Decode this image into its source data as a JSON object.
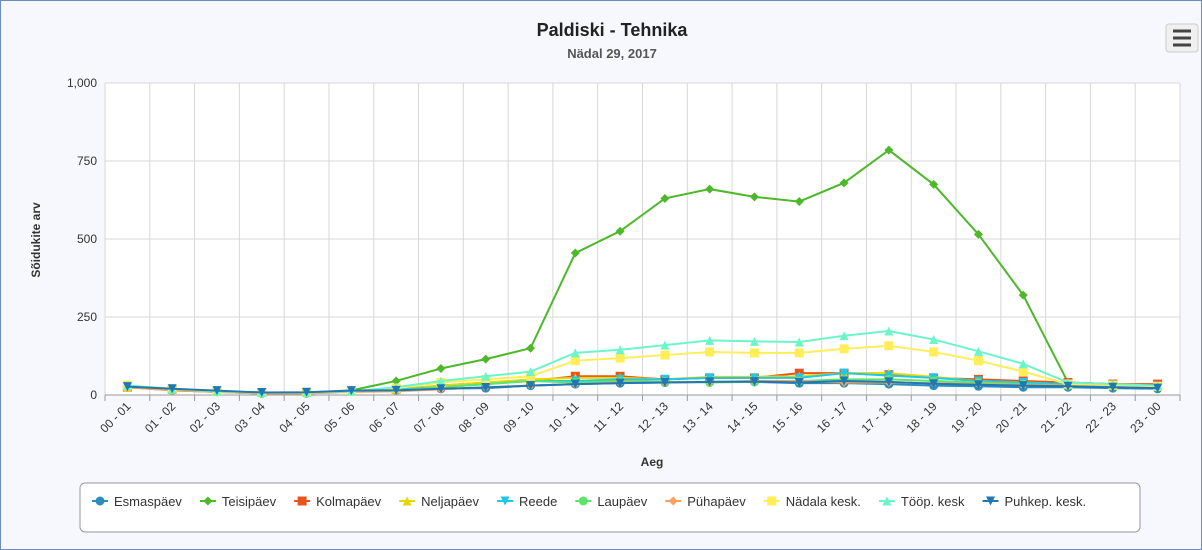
{
  "chart_data": {
    "type": "line",
    "title": "Paldiski - Tehnika",
    "subtitle": "Nädal 29, 2017",
    "x_label": "Aeg",
    "y_label": "Sõidukite arv",
    "categories": [
      "00 - 01",
      "01 - 02",
      "02 - 03",
      "03 - 04",
      "04 - 05",
      "05 - 06",
      "06 - 07",
      "07 - 08",
      "08 - 09",
      "09 - 10",
      "10 - 11",
      "11 - 12",
      "12 - 13",
      "13 - 14",
      "14 - 15",
      "15 - 16",
      "16 - 17",
      "17 - 18",
      "18 - 19",
      "19 - 20",
      "20 - 21",
      "21 - 22",
      "22 - 23",
      "23 - 00"
    ],
    "ylim": [
      0,
      1000
    ],
    "yticks": [
      0,
      250,
      500,
      750,
      {
        "value": 1000,
        "label": "1,000"
      }
    ],
    "grid": true,
    "legend": "bottom",
    "series": [
      {
        "name": "Esmaspäev",
        "color": "#2b8cbe",
        "values": [
          25,
          18,
          12,
          8,
          8,
          12,
          15,
          20,
          22,
          30,
          35,
          38,
          40,
          42,
          42,
          38,
          38,
          35,
          30,
          28,
          25,
          25,
          22,
          20
        ]
      },
      {
        "name": "Teisipäev",
        "color": "#4cb82a",
        "values": [
          25,
          15,
          10,
          5,
          8,
          15,
          45,
          85,
          115,
          150,
          455,
          525,
          630,
          660,
          635,
          620,
          680,
          785,
          675,
          515,
          320,
          40,
          35,
          30
        ]
      },
      {
        "name": "Kolmapäev",
        "color": "#e8541c",
        "values": [
          25,
          18,
          12,
          8,
          8,
          12,
          18,
          30,
          40,
          45,
          60,
          60,
          50,
          55,
          55,
          70,
          70,
          65,
          55,
          50,
          45,
          40,
          35,
          35
        ]
      },
      {
        "name": "Neljapäev",
        "color": "#e8d800",
        "values": [
          25,
          18,
          12,
          8,
          8,
          12,
          18,
          30,
          40,
          50,
          55,
          55,
          50,
          58,
          58,
          60,
          70,
          70,
          58,
          45,
          40,
          35,
          30,
          28
        ]
      },
      {
        "name": "Reede",
        "color": "#1fc8e8",
        "values": [
          25,
          18,
          12,
          8,
          8,
          12,
          18,
          25,
          35,
          45,
          45,
          50,
          50,
          55,
          55,
          55,
          70,
          62,
          55,
          45,
          40,
          35,
          30,
          28
        ]
      },
      {
        "name": "Laupäev",
        "color": "#5de46e",
        "values": [
          30,
          15,
          10,
          5,
          5,
          12,
          15,
          25,
          35,
          45,
          40,
          45,
          42,
          40,
          42,
          45,
          50,
          50,
          45,
          40,
          35,
          30,
          28,
          25
        ]
      },
      {
        "name": "Pühapäev",
        "color": "#f7a35c",
        "values": [
          25,
          15,
          10,
          5,
          5,
          10,
          12,
          18,
          25,
          30,
          35,
          40,
          40,
          42,
          45,
          45,
          40,
          40,
          38,
          35,
          32,
          30,
          28,
          25
        ]
      },
      {
        "name": "Nädala kesk.",
        "color": "#ffee58",
        "values": [
          30,
          20,
          12,
          8,
          8,
          12,
          22,
          40,
          50,
          60,
          110,
          118,
          128,
          138,
          135,
          135,
          148,
          158,
          138,
          110,
          75,
          35,
          32,
          28
        ]
      },
      {
        "name": "Tööp. kesk",
        "color": "#6cf5c8",
        "values": [
          30,
          20,
          12,
          8,
          8,
          12,
          25,
          45,
          60,
          75,
          135,
          145,
          160,
          175,
          172,
          170,
          190,
          205,
          178,
          140,
          100,
          40,
          35,
          30
        ]
      },
      {
        "name": "Puhkep. kesk.",
        "color": "#1f78b4",
        "values": [
          27,
          20,
          14,
          8,
          9,
          14,
          15,
          20,
          24,
          30,
          35,
          38,
          40,
          42,
          43,
          40,
          45,
          42,
          36,
          33,
          30,
          28,
          25,
          22
        ]
      }
    ]
  }
}
